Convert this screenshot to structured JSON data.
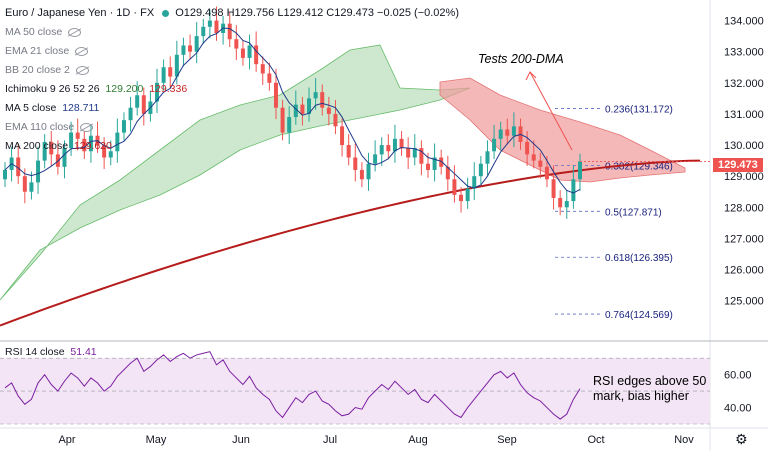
{
  "header": {
    "symbol": "Euro / Japanese Yen · 1D · FX",
    "ohlc": "O129.498  H129.756  L129.412  C129.473  −0.025 (−0.02%)"
  },
  "legend": [
    {
      "label": "MA 50 close",
      "value": ""
    },
    {
      "label": "EMA 21 close",
      "value": ""
    },
    {
      "label": "BB 20 close 2",
      "value": ""
    },
    {
      "label": "Ichimoku 9 26 52 26",
      "value": "129.200",
      "value2": "129.336"
    },
    {
      "label": "MA 5 close",
      "value": "128.711"
    },
    {
      "label": "EMA 110 close",
      "value": ""
    },
    {
      "label": "MA 200 close",
      "value": "129.620"
    }
  ],
  "rsi_legend": {
    "label": "RSI 14 close",
    "value": "51.41"
  },
  "annotations": {
    "dma": "Tests 200-DMA",
    "rsi_line1": "RSI edges above 50",
    "rsi_line2": "mark, bias higher"
  },
  "last_price": "129.473",
  "colors": {
    "up": "#26a69a",
    "down": "#ef5350",
    "ma200": "#b71c1c",
    "ma5": "#1e3a8a",
    "cloud_green": "#a5d6a7",
    "cloud_red": "#ef9a9a",
    "rsi": "#7b1fa2",
    "rsi_band": "#f3e5f5"
  },
  "chart_data": {
    "type": "candlestick",
    "x_ticks": [
      "Apr",
      "May",
      "Jun",
      "Jul",
      "Aug",
      "Sep",
      "Oct",
      "Nov"
    ],
    "y_ticks": [
      "134.000",
      "133.000",
      "132.000",
      "131.000",
      "130.000",
      "129.000",
      "128.000",
      "127.000",
      "126.000",
      "125.000"
    ],
    "ylim": [
      123.8,
      134.5
    ],
    "fib_levels": [
      {
        "label": "0.236(131.172)",
        "value": 131.172
      },
      {
        "label": "0.382(129.346)",
        "value": 129.346
      },
      {
        "label": "0.5(127.871)",
        "value": 127.871
      },
      {
        "label": "0.618(126.395)",
        "value": 126.395
      },
      {
        "label": "0.764(124.569)",
        "value": 124.569
      }
    ],
    "rsi_ticks": [
      "60.00",
      "40.00"
    ],
    "rsi_ylim": [
      30,
      75
    ],
    "series": [
      {
        "name": "EURJPY",
        "closes": [
          129.2,
          129.6,
          129.0,
          128.5,
          128.8,
          129.5,
          130.1,
          129.7,
          129.3,
          129.9,
          130.4,
          130.2,
          129.8,
          130.3,
          130.0,
          129.6,
          129.8,
          130.4,
          130.8,
          131.2,
          131.6,
          131.0,
          131.4,
          132.0,
          132.5,
          132.2,
          132.9,
          133.2,
          133.0,
          133.5,
          133.8,
          134.0,
          133.6,
          133.9,
          133.4,
          133.1,
          132.8,
          133.2,
          132.6,
          132.3,
          132.0,
          131.2,
          130.4,
          130.9,
          131.3,
          131.0,
          131.5,
          131.7,
          131.2,
          131.0,
          130.6,
          130.0,
          129.6,
          129.2,
          128.9,
          129.4,
          129.7,
          130.0,
          129.8,
          130.2,
          129.9,
          129.6,
          129.9,
          129.4,
          129.2,
          129.6,
          129.3,
          128.9,
          128.4,
          128.2,
          128.6,
          129.0,
          129.4,
          129.8,
          130.2,
          130.5,
          130.3,
          130.6,
          130.1,
          129.7,
          129.5,
          129.3,
          128.9,
          128.3,
          128.0,
          128.2,
          128.9,
          129.47
        ]
      }
    ],
    "rsi_values": [
      52,
      55,
      47,
      42,
      45,
      55,
      60,
      54,
      50,
      56,
      61,
      58,
      53,
      58,
      55,
      50,
      53,
      59,
      63,
      67,
      70,
      62,
      65,
      69,
      72,
      68,
      71,
      73,
      70,
      72,
      73,
      74,
      66,
      69,
      62,
      58,
      54,
      59,
      52,
      48,
      45,
      38,
      34,
      40,
      46,
      43,
      48,
      50,
      44,
      42,
      38,
      35,
      36,
      40,
      39,
      46,
      50,
      54,
      51,
      56,
      52,
      48,
      51,
      45,
      43,
      48,
      44,
      40,
      36,
      34,
      40,
      45,
      50,
      55,
      60,
      62,
      58,
      61,
      54,
      49,
      46,
      44,
      40,
      36,
      33,
      36,
      45,
      51.41
    ]
  }
}
